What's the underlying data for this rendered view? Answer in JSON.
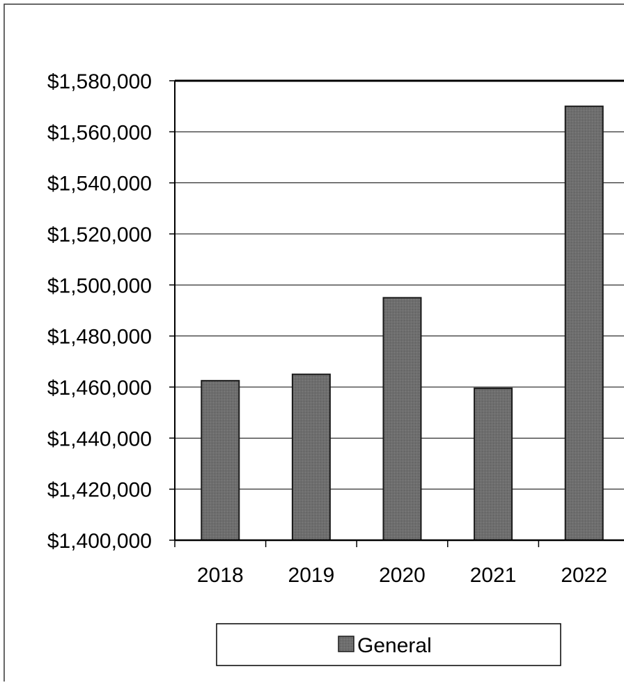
{
  "chart_data": {
    "type": "bar",
    "title": "",
    "xlabel": "",
    "ylabel": "",
    "categories": [
      "2018",
      "2019",
      "2020",
      "2021",
      "2022"
    ],
    "series": [
      {
        "name": "General",
        "values": [
          1462500,
          1465000,
          1495000,
          1459500,
          1570000
        ]
      }
    ],
    "ylim": [
      1400000,
      1580000
    ],
    "ytick_step": 20000,
    "ytick_labels": [
      "$1,400,000",
      "$1,420,000",
      "$1,440,000",
      "$1,460,000",
      "$1,480,000",
      "$1,500,000",
      "$1,520,000",
      "$1,540,000",
      "$1,560,000",
      "$1,580,000"
    ],
    "grid": true,
    "legend_position": "bottom",
    "colors": {
      "bar_fill": "#6e6e6e",
      "bar_stroke": "#1a1a1a",
      "gridline": "#000000",
      "frame": "#000000"
    }
  }
}
